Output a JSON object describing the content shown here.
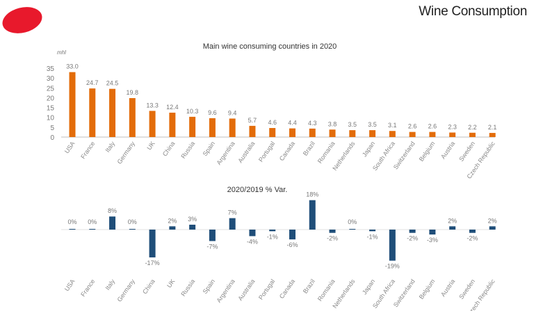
{
  "header": {
    "title": "Wine Consumption",
    "logo_color": "#e8192c"
  },
  "colors": {
    "volume_bar": "#e36c0a",
    "variation_bar": "#1f4e79",
    "axis": "#bfbfbf"
  },
  "chart_data": [
    {
      "type": "bar",
      "title": "Main wine consuming countries in 2020",
      "ylabel": "mhl",
      "ylim": [
        0,
        35
      ],
      "yticks": [
        "0",
        "5",
        "10",
        "15",
        "20",
        "25",
        "30",
        "35"
      ],
      "grid": false,
      "categories": [
        "USA",
        "France",
        "Italy",
        "Germany",
        "UK",
        "China",
        "Russia",
        "Spain",
        "Argentina",
        "Australia",
        "Portugal",
        "Canada",
        "Brazil",
        "Romania",
        "Netherlands",
        "Japan",
        "South Africa",
        "Switzerland",
        "Belgium",
        "Austria",
        "Sweden",
        "Czech Republic"
      ],
      "values": [
        33.0,
        24.7,
        24.5,
        19.8,
        13.3,
        12.4,
        10.3,
        9.6,
        9.4,
        5.7,
        4.6,
        4.4,
        4.3,
        3.8,
        3.5,
        3.5,
        3.1,
        2.6,
        2.6,
        2.3,
        2.2,
        2.1
      ],
      "labels": [
        "33.0",
        "24.7",
        "24.5",
        "19.8",
        "13.3",
        "12.4",
        "10.3",
        "9.6",
        "9.4",
        "5.7",
        "4.6",
        "4.4",
        "4.3",
        "3.8",
        "3.5",
        "3.5",
        "3.1",
        "2.6",
        "2.6",
        "2.3",
        "2.2",
        "2.1"
      ]
    },
    {
      "type": "bar",
      "title": "2020/2019 % Var.",
      "ylim": [
        -20,
        20
      ],
      "grid": false,
      "categories": [
        "USA",
        "France",
        "Italy",
        "Germany",
        "China",
        "UK",
        "Russia",
        "Spain",
        "Argentina",
        "Australia",
        "Portugal",
        "Canada",
        "Brazil",
        "Romania",
        "Netherlands",
        "Japan",
        "South Africa",
        "Switzerland",
        "Belgium",
        "Austria",
        "Sweden",
        "Czech Republic"
      ],
      "values": [
        0,
        0,
        8,
        0,
        -17,
        2,
        3,
        -7,
        7,
        -4,
        -1,
        -6,
        18,
        -2,
        0,
        -1,
        -19,
        -2,
        -3,
        2,
        -2,
        2
      ],
      "labels": [
        "0%",
        "0%",
        "8%",
        "0%",
        "-17%",
        "2%",
        "3%",
        "-7%",
        "7%",
        "-4%",
        "-1%",
        "-6%",
        "18%",
        "-2%",
        "0%",
        "-1%",
        "-19%",
        "-2%",
        "-3%",
        "2%",
        "-2%",
        "2%"
      ]
    }
  ]
}
